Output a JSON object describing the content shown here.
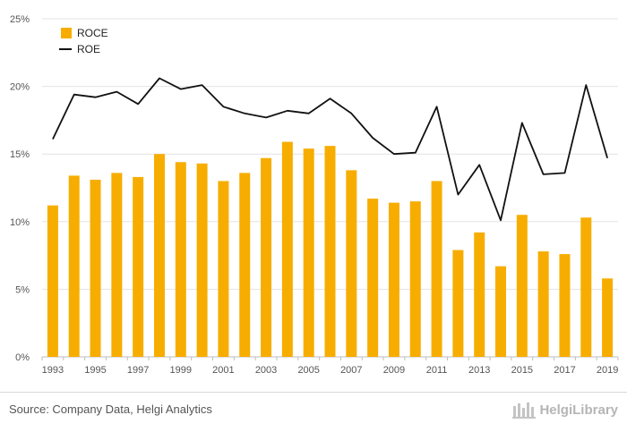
{
  "chart_data": {
    "type": "bar+line",
    "x": [
      "1993",
      "1994",
      "1995",
      "1996",
      "1997",
      "1998",
      "1999",
      "2000",
      "2001",
      "2002",
      "2003",
      "2004",
      "2005",
      "2006",
      "2007",
      "2008",
      "2009",
      "2010",
      "2011",
      "2012",
      "2013",
      "2014",
      "2015",
      "2016",
      "2017",
      "2018",
      "2019"
    ],
    "x_tick_labels": [
      "1993",
      "1995",
      "1997",
      "1999",
      "2001",
      "2003",
      "2005",
      "2007",
      "2009",
      "2011",
      "2013",
      "2015",
      "2017",
      "2019"
    ],
    "y_tick_labels": [
      "0%",
      "5%",
      "10%",
      "15%",
      "20%",
      "25%"
    ],
    "ylim": [
      0,
      25
    ],
    "y_unit": "%",
    "grid": true,
    "legend_position": "top-left",
    "series": [
      {
        "name": "ROCE",
        "type": "bar",
        "color": "#f7ad00",
        "values": [
          11.2,
          13.4,
          13.1,
          13.6,
          13.3,
          15.0,
          14.4,
          14.3,
          13.0,
          13.6,
          14.7,
          15.9,
          15.4,
          15.6,
          13.8,
          11.7,
          11.4,
          11.5,
          13.0,
          7.9,
          9.2,
          6.7,
          10.5,
          7.8,
          7.6,
          10.3,
          5.8
        ]
      },
      {
        "name": "ROE",
        "type": "line",
        "color": "#111111",
        "values": [
          16.1,
          19.4,
          19.2,
          19.6,
          18.7,
          20.6,
          19.8,
          20.1,
          18.5,
          18.0,
          17.7,
          18.2,
          18.0,
          19.1,
          18.0,
          16.2,
          15.0,
          15.1,
          18.5,
          12.0,
          14.2,
          10.1,
          17.3,
          13.5,
          13.6,
          20.1,
          14.7
        ]
      }
    ]
  },
  "footer": {
    "source": "Source: Company Data, Helgi Analytics",
    "brand": "HelgiLibrary"
  },
  "colors": {
    "grid": "#e3e3e3",
    "axis": "#bdbdbd"
  }
}
